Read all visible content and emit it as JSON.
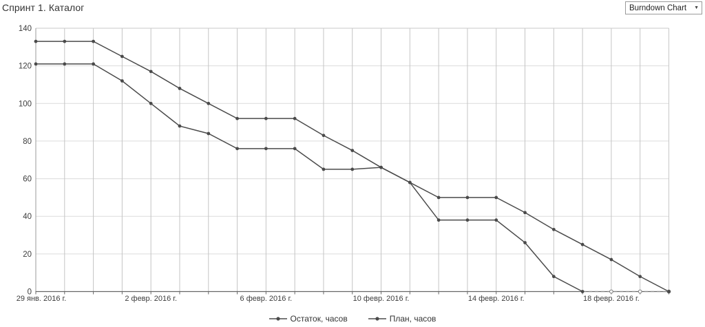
{
  "header": {
    "title": "Спринт 1. Каталог"
  },
  "chart_selector": {
    "value": "Burndown Chart"
  },
  "chart_data": {
    "type": "line",
    "title": "Спринт 1. Каталог",
    "x_axis": {
      "num_points": 23,
      "tick_labels": [
        {
          "index": 0,
          "label": "29 янв. 2016 г."
        },
        {
          "index": 4,
          "label": "2 февр. 2016 г."
        },
        {
          "index": 8,
          "label": "6 февр. 2016 г."
        },
        {
          "index": 12,
          "label": "10 февр. 2016 г."
        },
        {
          "index": 16,
          "label": "14 февр. 2016 г."
        },
        {
          "index": 20,
          "label": "18 февр. 2016 г."
        }
      ]
    },
    "y_axis": {
      "min": 0,
      "max": 140,
      "ticks": [
        0,
        20,
        40,
        60,
        80,
        100,
        120,
        140
      ]
    },
    "grid": true,
    "legend_position": "bottom",
    "series": [
      {
        "name": "Остаток, часов",
        "color": "#4a4a4a",
        "values": [
          121,
          121,
          121,
          112,
          100,
          88,
          84,
          76,
          76,
          76,
          65,
          65,
          66,
          58,
          38,
          38,
          38,
          26,
          8,
          0,
          0,
          0,
          0
        ],
        "dashed_from_index": 19,
        "hollow_marker_indices": [
          20,
          21,
          22
        ]
      },
      {
        "name": "План, часов",
        "color": "#4a4a4a",
        "values": [
          133,
          133,
          133,
          125,
          117,
          108,
          100,
          92,
          92,
          92,
          83,
          75,
          66,
          58,
          50,
          50,
          50,
          42,
          33,
          25,
          17,
          8,
          0
        ]
      }
    ]
  },
  "colors": {
    "grid_vertical": "#c4c4c4",
    "grid_horizontal": "#dcdcdc",
    "axis_bottom": "#666666",
    "axis_left": "#999999",
    "plot_border": "#c8c8c8",
    "dashed_segment": "#8a8a8a",
    "hollow_marker_stroke": "#7a7a7a",
    "tick_text": "#3c3c3c"
  }
}
